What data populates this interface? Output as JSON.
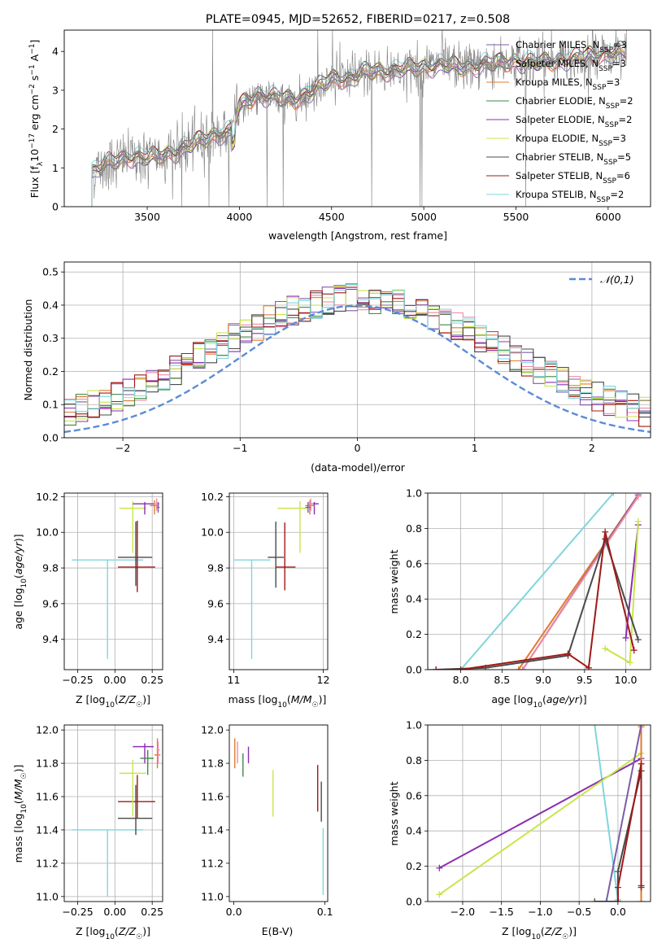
{
  "colors": {
    "chabrier_miles": "#7b5ea7",
    "salpeter_miles": "#f08aa6",
    "kroupa_miles": "#e07b2c",
    "chabrier_elodie": "#3c8a48",
    "salpeter_elodie": "#8b2fb0",
    "kroupa_elodie": "#c8e64a",
    "chabrier_stelib": "#4a4a4a",
    "salpeter_stelib": "#a01818",
    "kroupa_stelib": "#7fd6dc",
    "spectrum": "#808080",
    "normal_curve": "#5b8bd8",
    "grid": "#b0b0b0"
  },
  "chart_data": [
    {
      "id": "spectrum",
      "type": "line",
      "title": "PLATE=0945, MJD=52652, FIBERID=0217, z=0.508",
      "xlabel": "wavelength [Angstrom, rest frame]",
      "ylabel": "Flux [f_λ 10^-17 erg cm^-2 s^-1 A^-1]",
      "xlim": [
        3050,
        6230
      ],
      "ylim": [
        0,
        4.55
      ],
      "xticks": [
        "3500",
        "4000",
        "4500",
        "5000",
        "5500",
        "6000"
      ],
      "yticks": [
        "0",
        "1",
        "2",
        "3",
        "4"
      ],
      "grid": false,
      "legend_position": "top-right",
      "legend": [
        "Chabrier MILES, N_SSP=3",
        "Salpeter MILES, N_SSP=3",
        "Kroupa MILES, N_SSP=3",
        "Chabrier ELODIE, N_SSP=2",
        "Salpeter ELODIE, N_SSP=2",
        "Kroupa ELODIE, N_SSP=3",
        "Chabrier STELIB, N_SSP=5",
        "Salpeter STELIB, N_SSP=6",
        "Kroupa STELIB, N_SSP=2"
      ],
      "continuum": [
        [
          3200,
          0.9
        ],
        [
          3300,
          1.15
        ],
        [
          3400,
          1.3
        ],
        [
          3500,
          1.25
        ],
        [
          3600,
          1.35
        ],
        [
          3700,
          1.5
        ],
        [
          3800,
          1.75
        ],
        [
          3900,
          1.9
        ],
        [
          3950,
          1.9
        ],
        [
          4000,
          2.6
        ],
        [
          4100,
          2.9
        ],
        [
          4200,
          2.8
        ],
        [
          4300,
          2.75
        ],
        [
          4400,
          3.0
        ],
        [
          4500,
          3.3
        ],
        [
          4600,
          3.3
        ],
        [
          4700,
          3.5
        ],
        [
          4800,
          3.5
        ],
        [
          4900,
          3.55
        ],
        [
          5000,
          3.6
        ],
        [
          5100,
          3.65
        ],
        [
          5200,
          3.6
        ],
        [
          5300,
          3.65
        ],
        [
          5400,
          3.7
        ],
        [
          5500,
          3.75
        ],
        [
          5600,
          3.7
        ],
        [
          5700,
          3.75
        ],
        [
          5800,
          3.8
        ],
        [
          5900,
          3.9
        ],
        [
          6000,
          3.95
        ],
        [
          6100,
          4.0
        ]
      ]
    },
    {
      "id": "residuals",
      "type": "histogram",
      "xlabel": "(data-model)/error",
      "ylabel": "Normed distribution",
      "xlim": [
        -2.5,
        2.5
      ],
      "ylim": [
        0,
        0.53
      ],
      "xticks": [
        "−2",
        "−1",
        "0",
        "1",
        "2"
      ],
      "yticks": [
        "0.0",
        "0.1",
        "0.2",
        "0.3",
        "0.4",
        "0.5"
      ],
      "grid": true,
      "legend_position": "top-right",
      "legend": [
        "𝒩(0,1)"
      ],
      "bin_width": 0.1
    },
    {
      "id": "age_vs_Z",
      "type": "errorbar",
      "xlabel": "Z [log10(Z/Z☉)]",
      "ylabel": "age [log10(age/yr)]",
      "xlim": [
        -0.34,
        0.32
      ],
      "ylim": [
        9.23,
        10.22
      ],
      "xticks": [
        "−0.25",
        "0.00",
        "0.25"
      ],
      "yticks": [
        "9.4",
        "9.6",
        "9.8",
        "10.0",
        "10.2"
      ],
      "grid": true,
      "points": [
        {
          "model": "kroupa_stelib",
          "x": -0.05,
          "xerr": [
            0.24,
            0.24
          ],
          "y": 9.845,
          "yerr": [
            0.555,
            0
          ]
        },
        {
          "model": "chabrier_stelib",
          "x": 0.14,
          "xerr": [
            0.12,
            0.11
          ],
          "y": 9.86,
          "yerr": [
            0.16,
            0.2
          ]
        },
        {
          "model": "salpeter_stelib",
          "x": 0.15,
          "xerr": [
            0.13,
            0.12
          ],
          "y": 9.805,
          "yerr": [
            0.14,
            0.26
          ]
        },
        {
          "model": "kroupa_elodie",
          "x": 0.12,
          "xerr": [
            0.09,
            0.09
          ],
          "y": 10.135,
          "yerr": [
            0.25,
            0.04
          ]
        },
        {
          "model": "salpeter_elodie",
          "x": 0.2,
          "xerr": [
            0.08,
            0.06
          ],
          "y": 10.16,
          "yerr": [
            0.06,
            0.01
          ]
        },
        {
          "model": "kroupa_miles",
          "x": 0.265,
          "xerr": [
            0.03,
            0.03
          ],
          "y": 10.15,
          "yerr": [
            0.05,
            0.03
          ]
        },
        {
          "model": "salpeter_miles",
          "x": 0.28,
          "xerr": [
            0.02,
            0.02
          ],
          "y": 10.16,
          "yerr": [
            0.04,
            0.03
          ]
        },
        {
          "model": "chabrier_miles",
          "x": 0.29,
          "xerr": [
            0.01,
            0.01
          ],
          "y": 10.14,
          "yerr": [
            0.03,
            0.03
          ]
        }
      ]
    },
    {
      "id": "age_vs_mass",
      "type": "errorbar",
      "xlabel": "mass [log10(M/M☉)]",
      "xlim": [
        10.95,
        12.05
      ],
      "ylim": [
        9.23,
        10.22
      ],
      "xticks": [
        "11",
        "12"
      ],
      "yticks": [
        "9.4",
        "9.6",
        "9.8",
        "10.0",
        "10.2"
      ],
      "grid": true,
      "points": [
        {
          "model": "kroupa_stelib",
          "x": 11.2,
          "xerr": [
            0.2,
            0.21
          ],
          "y": 9.845,
          "yerr": [
            0.555,
            0
          ]
        },
        {
          "model": "chabrier_stelib",
          "x": 11.47,
          "xerr": [
            0.09,
            0.09
          ],
          "y": 9.86,
          "yerr": [
            0.17,
            0.2
          ]
        },
        {
          "model": "salpeter_stelib",
          "x": 11.57,
          "xerr": [
            0.1,
            0.12
          ],
          "y": 9.805,
          "yerr": [
            0.13,
            0.25
          ]
        },
        {
          "model": "kroupa_elodie",
          "x": 11.74,
          "xerr": [
            0.25,
            0.08
          ],
          "y": 10.135,
          "yerr": [
            0.25,
            0.04
          ]
        },
        {
          "model": "salpeter_elodie",
          "x": 11.9,
          "xerr": [
            0.05,
            0.05
          ],
          "y": 10.16,
          "yerr": [
            0.06,
            0.01
          ]
        },
        {
          "model": "kroupa_miles",
          "x": 11.85,
          "xerr": [
            0.05,
            0.05
          ],
          "y": 10.15,
          "yerr": [
            0.05,
            0.03
          ]
        },
        {
          "model": "salpeter_miles",
          "x": 11.86,
          "xerr": [
            0.03,
            0.03
          ],
          "y": 10.16,
          "yerr": [
            0.04,
            0.03
          ]
        },
        {
          "model": "chabrier_miles",
          "x": 11.83,
          "xerr": [
            0.03,
            0.03
          ],
          "y": 10.14,
          "yerr": [
            0.03,
            0.03
          ]
        }
      ]
    },
    {
      "id": "weight_vs_age",
      "type": "line",
      "xlabel": "age [log10(age/yr)]",
      "ylabel": "mass weight",
      "xlim": [
        7.6,
        10.3
      ],
      "ylim": [
        0,
        1
      ],
      "xticks": [
        "8.0",
        "8.5",
        "9.0",
        "9.5",
        "10.0"
      ],
      "yticks": [
        "0.0",
        "0.2",
        "0.4",
        "0.6",
        "0.8",
        "1.0"
      ],
      "grid": true,
      "series": [
        {
          "model": "kroupa_stelib",
          "x": [
            7.6,
            8.0,
            9.85
          ],
          "y": [
            0,
            0,
            1.0
          ]
        },
        {
          "model": "kroupa_miles",
          "x": [
            8.7,
            10.15
          ],
          "y": [
            0,
            0.99
          ]
        },
        {
          "model": "chabrier_miles",
          "x": [
            8.75,
            10.15
          ],
          "y": [
            0,
            0.99
          ]
        },
        {
          "model": "salpeter_miles",
          "x": [
            8.75,
            10.15
          ],
          "y": [
            0,
            0.98
          ]
        },
        {
          "model": "salpeter_elodie",
          "x": [
            10.0,
            10.15
          ],
          "y": [
            0.18,
            0.82
          ]
        },
        {
          "model": "kroupa_elodie",
          "x": [
            9.75,
            10.05,
            10.15
          ],
          "y": [
            0.12,
            0.04,
            0.84
          ]
        },
        {
          "model": "chabrier_stelib",
          "x": [
            7.7,
            8.3,
            9.3,
            9.75,
            10.15
          ],
          "y": [
            0,
            0.01,
            0.08,
            0.74,
            0.17
          ]
        },
        {
          "model": "salpeter_stelib",
          "x": [
            7.7,
            8.0,
            9.3,
            9.55,
            9.75,
            10.1
          ],
          "y": [
            0,
            0,
            0.09,
            0.01,
            0.78,
            0.11
          ]
        }
      ]
    },
    {
      "id": "mass_vs_Z",
      "type": "errorbar",
      "xlabel": "Z [log10(Z/Z☉)]",
      "ylabel": "mass [log10(M/M☉)]",
      "xlim": [
        -0.34,
        0.32
      ],
      "ylim": [
        10.97,
        12.03
      ],
      "xticks": [
        "−0.25",
        "0.00",
        "0.25"
      ],
      "yticks": [
        "11.0",
        "11.2",
        "11.4",
        "11.6",
        "11.8",
        "12.0"
      ],
      "grid": true,
      "points": [
        {
          "model": "kroupa_stelib",
          "x": -0.05,
          "xerr": [
            0.24,
            0.24
          ],
          "y": 11.4,
          "yerr": [
            0.4,
            0
          ]
        },
        {
          "model": "chabrier_stelib",
          "x": 0.14,
          "xerr": [
            0.12,
            0.11
          ],
          "y": 11.47,
          "yerr": [
            0.1,
            0.2
          ]
        },
        {
          "model": "salpeter_stelib",
          "x": 0.15,
          "xerr": [
            0.13,
            0.12
          ],
          "y": 11.57,
          "yerr": [
            0.1,
            0.16
          ]
        },
        {
          "model": "kroupa_elodie",
          "x": 0.12,
          "xerr": [
            0.09,
            0.09
          ],
          "y": 11.74,
          "yerr": [
            0.26,
            0.08
          ]
        },
        {
          "model": "salpeter_elodie",
          "x": 0.2,
          "xerr": [
            0.08,
            0.06
          ],
          "y": 11.9,
          "yerr": [
            0.1,
            0.02
          ]
        },
        {
          "model": "chabrier_elodie",
          "x": 0.22,
          "xerr": [
            0.05,
            0.04
          ],
          "y": 11.83,
          "yerr": [
            0.1,
            0.05
          ]
        },
        {
          "model": "kroupa_miles",
          "x": 0.285,
          "xerr": [
            0.02,
            0.02
          ],
          "y": 11.85,
          "yerr": [
            0.08,
            0.1
          ]
        },
        {
          "model": "salpeter_miles",
          "x": 0.29,
          "xerr": [
            0.01,
            0.01
          ],
          "y": 11.88,
          "yerr": [
            0.08,
            0.05
          ]
        }
      ]
    },
    {
      "id": "mass_vs_ebv",
      "type": "errorbar",
      "xlabel": "E(B-V)",
      "xlim": [
        -0.005,
        0.103
      ],
      "ylim": [
        10.97,
        12.03
      ],
      "xticks": [
        "0.0",
        "0.1"
      ],
      "yticks": [
        "11.0",
        "11.2",
        "11.4",
        "11.6",
        "11.8",
        "12.0"
      ],
      "grid": false,
      "points": [
        {
          "model": "kroupa_miles",
          "x": 0.001,
          "y": 11.85,
          "yerr": [
            0.08,
            0.1
          ]
        },
        {
          "model": "salpeter_miles",
          "x": 0.004,
          "y": 11.88,
          "yerr": [
            0.08,
            0.05
          ]
        },
        {
          "model": "chabrier_elodie",
          "x": 0.01,
          "y": 11.82,
          "yerr": [
            0.1,
            0.04
          ]
        },
        {
          "model": "salpeter_elodie",
          "x": 0.016,
          "y": 11.85,
          "yerr": [
            0.05,
            0.05
          ]
        },
        {
          "model": "kroupa_elodie",
          "x": 0.043,
          "y": 11.62,
          "yerr": [
            0.14,
            0.14
          ]
        },
        {
          "model": "salpeter_stelib",
          "x": 0.092,
          "y": 11.65,
          "yerr": [
            0.14,
            0.14
          ]
        },
        {
          "model": "chabrier_stelib",
          "x": 0.096,
          "y": 11.57,
          "yerr": [
            0.12,
            0.12
          ]
        },
        {
          "model": "kroupa_stelib",
          "x": 0.098,
          "y": 11.21,
          "yerr": [
            0.2,
            0.2
          ]
        }
      ]
    },
    {
      "id": "weight_vs_Z",
      "type": "line",
      "xlabel": "Z [log10(Z/Z☉)]",
      "ylabel": "mass weight",
      "xlim": [
        -2.45,
        0.42
      ],
      "ylim": [
        0,
        1
      ],
      "xticks": [
        "−2.0",
        "−1.5",
        "−1.0",
        "−0.5",
        "0.0"
      ],
      "yticks": [
        "0.0",
        "0.2",
        "0.4",
        "0.6",
        "0.8",
        "1.0"
      ],
      "grid": true,
      "series": [
        {
          "model": "kroupa_stelib",
          "x": [
            -0.3,
            0.0
          ],
          "y": [
            1.0,
            0.01
          ]
        },
        {
          "model": "salpeter_elodie",
          "x": [
            -2.3,
            0.3
          ],
          "y": [
            0.19,
            0.81
          ]
        },
        {
          "model": "kroupa_elodie",
          "x": [
            -2.3,
            0.3
          ],
          "y": [
            0.04,
            0.84
          ]
        },
        {
          "model": "kroupa_miles",
          "x": [
            0.3,
            0.3
          ],
          "y": [
            0.0,
            0.99
          ]
        },
        {
          "model": "chabrier_miles",
          "x": [
            -0.15,
            0.3
          ],
          "y": [
            0.0,
            1.0
          ]
        },
        {
          "model": "chabrier_stelib",
          "x": [
            -0.3,
            0.0,
            0.0,
            0.3,
            0.3
          ],
          "y": [
            0,
            0,
            0.17,
            0.74,
            0.08
          ]
        },
        {
          "model": "salpeter_stelib",
          "x": [
            0.0,
            0.0,
            0.3,
            0.3
          ],
          "y": [
            0.0,
            0.08,
            0.78,
            0.09
          ]
        }
      ]
    }
  ]
}
